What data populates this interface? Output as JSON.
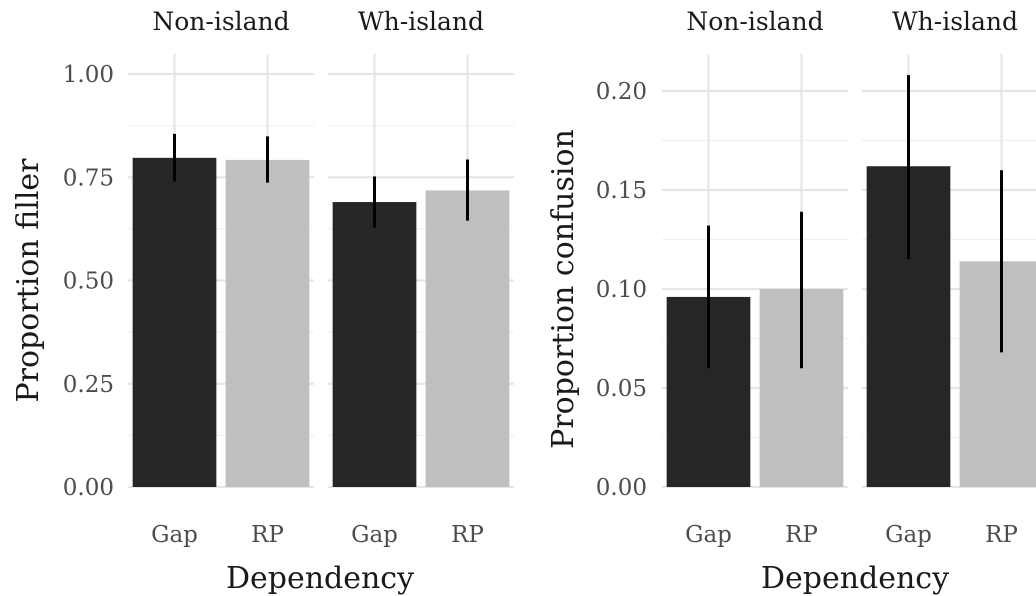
{
  "chart_data": [
    {
      "type": "bar",
      "ylabel": "Proportion filler",
      "xlabel": "Dependency",
      "ylim": [
        0,
        1.0
      ],
      "yticks": [
        "0.00",
        "0.25",
        "0.50",
        "0.75",
        "1.00"
      ],
      "facets": [
        {
          "name": "Non-island",
          "categories": [
            "Gap",
            "RP"
          ],
          "values": [
            0.797,
            0.792
          ],
          "error_low": [
            0.74,
            0.737
          ],
          "error_high": [
            0.855,
            0.849
          ],
          "colors": [
            "#262626",
            "#bfbfbf"
          ]
        },
        {
          "name": "Wh-island",
          "categories": [
            "Gap",
            "RP"
          ],
          "values": [
            0.69,
            0.718
          ],
          "error_low": [
            0.628,
            0.645
          ],
          "error_high": [
            0.752,
            0.793
          ],
          "colors": [
            "#262626",
            "#bfbfbf"
          ]
        }
      ],
      "grid": true,
      "legend": "none"
    },
    {
      "type": "bar",
      "ylabel": "Proportion confusion",
      "xlabel": "Dependency",
      "ylim": [
        0,
        0.2
      ],
      "yticks": [
        "0.00",
        "0.05",
        "0.10",
        "0.15",
        "0.20"
      ],
      "facets": [
        {
          "name": "Non-island",
          "categories": [
            "Gap",
            "RP"
          ],
          "values": [
            0.096,
            0.1
          ],
          "error_low": [
            0.06,
            0.06
          ],
          "error_high": [
            0.132,
            0.139
          ],
          "colors": [
            "#262626",
            "#bfbfbf"
          ]
        },
        {
          "name": "Wh-island",
          "categories": [
            "Gap",
            "RP"
          ],
          "values": [
            0.162,
            0.114
          ],
          "error_low": [
            0.115,
            0.068
          ],
          "error_high": [
            0.208,
            0.16
          ],
          "colors": [
            "#262626",
            "#bfbfbf"
          ]
        }
      ],
      "grid": true,
      "legend": "none"
    }
  ]
}
